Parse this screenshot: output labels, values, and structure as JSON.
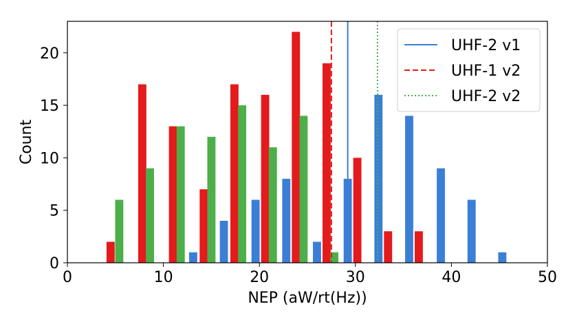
{
  "chart_data": {
    "type": "bar",
    "title": "",
    "xlabel": "NEP (aW/rt(Hz))",
    "ylabel": "Count",
    "xlim": [
      0,
      50
    ],
    "ylim": [
      0,
      23
    ],
    "xticks": [
      0,
      10,
      20,
      30,
      40,
      50
    ],
    "yticks": [
      0,
      5,
      10,
      15,
      20
    ],
    "grid": false,
    "legend_position": "top-right",
    "bar_width": 0.85,
    "series": [
      {
        "name": "UHF-2 v1",
        "color": "#3a7fd5",
        "points": [
          {
            "x": 13.1,
            "y": 1
          },
          {
            "x": 16.3,
            "y": 4
          },
          {
            "x": 19.6,
            "y": 6
          },
          {
            "x": 22.8,
            "y": 8
          },
          {
            "x": 26.0,
            "y": 2
          },
          {
            "x": 29.2,
            "y": 8
          },
          {
            "x": 32.4,
            "y": 16
          },
          {
            "x": 35.6,
            "y": 14
          },
          {
            "x": 38.9,
            "y": 9
          },
          {
            "x": 42.1,
            "y": 6
          },
          {
            "x": 45.3,
            "y": 1
          }
        ]
      },
      {
        "name": "",
        "color": "#e41a1c",
        "points": [
          {
            "x": 4.5,
            "y": 2
          },
          {
            "x": 7.8,
            "y": 17
          },
          {
            "x": 11.0,
            "y": 13
          },
          {
            "x": 14.2,
            "y": 7
          },
          {
            "x": 17.4,
            "y": 17
          },
          {
            "x": 20.6,
            "y": 16
          },
          {
            "x": 23.8,
            "y": 22
          },
          {
            "x": 27.0,
            "y": 19
          },
          {
            "x": 30.2,
            "y": 10
          },
          {
            "x": 33.4,
            "y": 3
          },
          {
            "x": 36.6,
            "y": 3
          }
        ]
      },
      {
        "name": "",
        "color": "#4daf4a",
        "points": [
          {
            "x": 5.4,
            "y": 6
          },
          {
            "x": 8.6,
            "y": 9
          },
          {
            "x": 11.8,
            "y": 13
          },
          {
            "x": 15.0,
            "y": 12
          },
          {
            "x": 18.2,
            "y": 15
          },
          {
            "x": 21.4,
            "y": 11
          },
          {
            "x": 24.6,
            "y": 14
          },
          {
            "x": 27.8,
            "y": 1
          }
        ]
      }
    ],
    "vlines": [
      {
        "name": "UHF-2 v1",
        "x": 29.2,
        "color": "#3a7fd5",
        "dash": "solid"
      },
      {
        "name": "UHF-1 v2",
        "x": 27.5,
        "color": "#e41a1c",
        "dash": "dashed"
      },
      {
        "name": "UHF-2 v2",
        "x": 32.3,
        "color": "#4daf4a",
        "dash": "dotted"
      }
    ],
    "legend": [
      {
        "label": "UHF-2 v1",
        "color": "#3a7fd5",
        "dash": "solid"
      },
      {
        "label": "UHF-1 v2",
        "color": "#e41a1c",
        "dash": "dashed"
      },
      {
        "label": "UHF-2 v2",
        "color": "#4daf4a",
        "dash": "dotted"
      }
    ]
  }
}
